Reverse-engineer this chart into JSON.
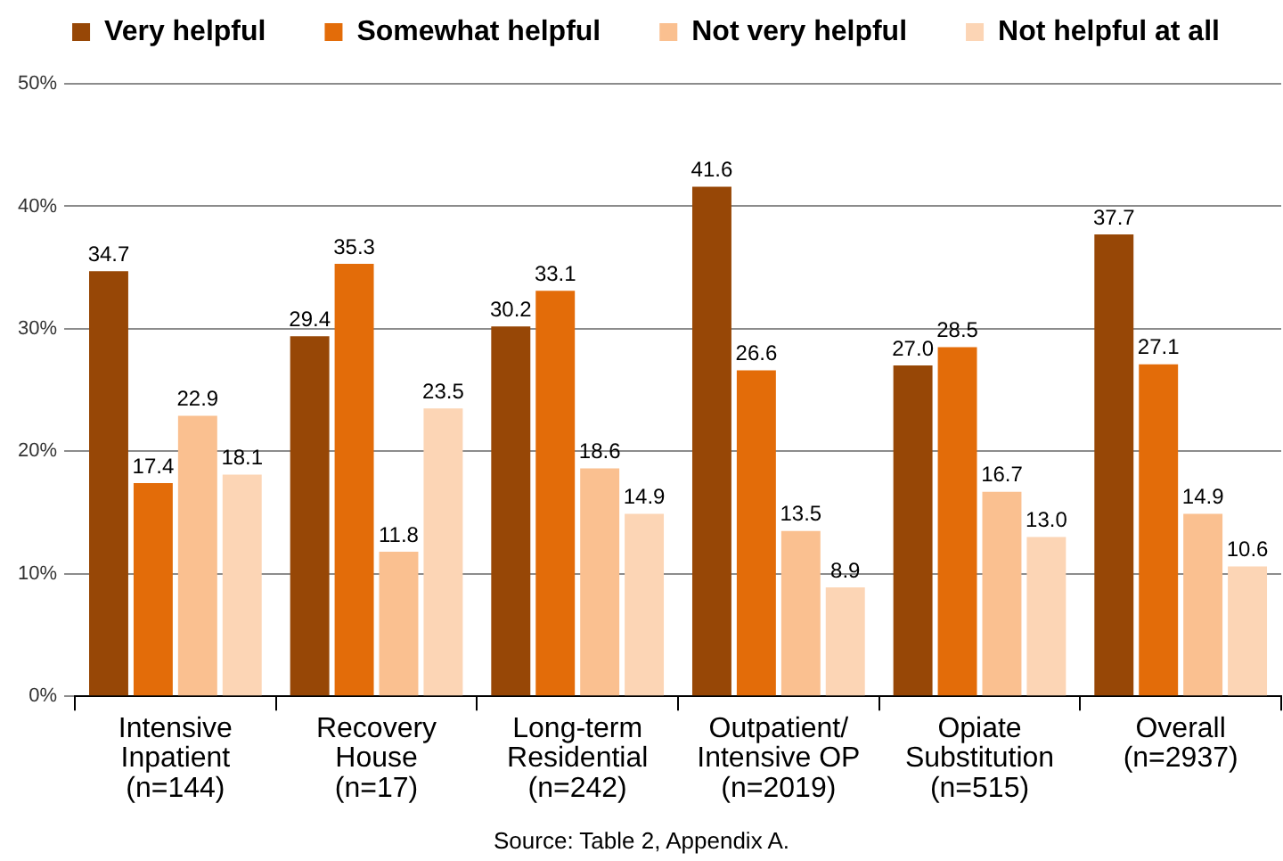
{
  "chart_data": {
    "type": "bar",
    "categories": [
      "Intensive\nInpatient\n(n=144)",
      "Recovery\nHouse\n(n=17)",
      "Long-term\nResidential\n(n=242)",
      "Outpatient/\nIntensive OP\n(n=2019)",
      "Opiate\nSubstitution\n(n=515)",
      "Overall\n(n=2937)"
    ],
    "series": [
      {
        "name": "Very helpful",
        "color": "#974706",
        "values": [
          34.7,
          29.4,
          30.2,
          41.6,
          27.0,
          37.7
        ],
        "value_labels": [
          "34.7",
          "29.4",
          "30.2",
          "41.6",
          "27.0",
          "37.7"
        ]
      },
      {
        "name": "Somewhat helpful",
        "color": "#e36c09",
        "values": [
          17.4,
          35.3,
          33.1,
          26.6,
          28.5,
          27.1
        ],
        "value_labels": [
          "17.4",
          "35.3",
          "33.1",
          "26.6",
          "28.5",
          "27.1"
        ]
      },
      {
        "name": "Not very helpful",
        "color": "#fac090",
        "values": [
          22.9,
          11.8,
          18.6,
          13.5,
          16.7,
          14.9
        ],
        "value_labels": [
          "22.9",
          "11.8",
          "18.6",
          "13.5",
          "16.7",
          "14.9"
        ]
      },
      {
        "name": "Not helpful at all",
        "color": "#fcd5b5",
        "values": [
          18.1,
          23.5,
          14.9,
          8.9,
          13.0,
          10.6
        ],
        "value_labels": [
          "18.1",
          "23.5",
          "14.9",
          "8.9",
          "13.0",
          "10.6"
        ]
      }
    ],
    "ylim": [
      0,
      50
    ],
    "yticks": [
      {
        "value": 0,
        "label": "0%"
      },
      {
        "value": 10,
        "label": "10%"
      },
      {
        "value": 20,
        "label": "20%"
      },
      {
        "value": 30,
        "label": "30%"
      },
      {
        "value": 40,
        "label": "40%"
      },
      {
        "value": 50,
        "label": "50%"
      }
    ],
    "grid": "y",
    "legend": "top",
    "annotations": [
      "Source: Table 2, Appendix A."
    ]
  }
}
